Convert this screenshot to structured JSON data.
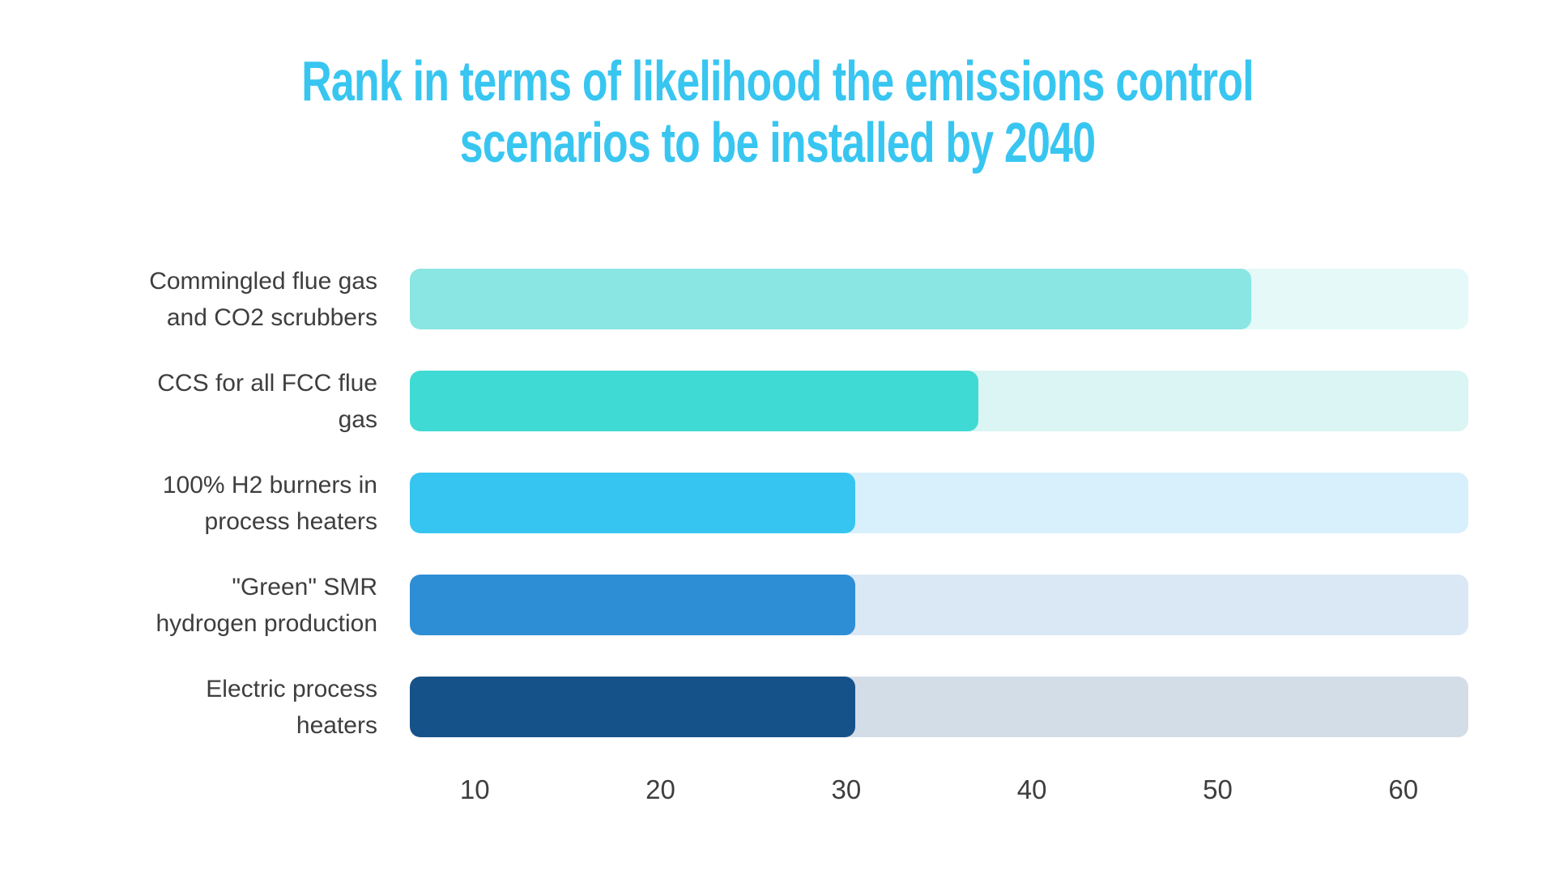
{
  "chart_data": {
    "type": "bar",
    "orientation": "horizontal",
    "title": "Rank in terms of likelihood the emissions control scenarios to be installed by 2040",
    "title_lines": [
      "Rank in terms of likelihood the emissions control",
      "scenarios to be installed by 2040"
    ],
    "title_color": "#38C6F1",
    "label_color": "#3E3E3E",
    "categories": [
      "Commingled flue gas and CO2 scrubbers",
      "CCS for all FCC flue gas",
      "100% H2 burners in process heaters",
      "\"Green\" SMR hydrogen production",
      "Electric process heaters"
    ],
    "category_lines": [
      [
        "Commingled flue gas",
        "and CO2 scrubbers"
      ],
      [
        "CCS for all FCC flue",
        "gas"
      ],
      [
        "100% H2 burners in",
        "process heaters"
      ],
      [
        "\"Green\" SMR",
        "hydrogen production"
      ],
      [
        "Electric process",
        "heaters"
      ]
    ],
    "values": [
      51.8,
      37.1,
      30.5,
      30.5,
      30.5
    ],
    "bar_colors": [
      "#8AE6E2",
      "#3FDAD3",
      "#36C4F0",
      "#2E8ED5",
      "#16528A"
    ],
    "track_colors": [
      "#E4F9F8",
      "#DAF5F3",
      "#D8F0FB",
      "#DAE8F5",
      "#D3DDE8"
    ],
    "axis": {
      "min": 6.5,
      "max": 63.5,
      "ticks": [
        10,
        20,
        30,
        40,
        50,
        60
      ]
    },
    "xlabel": "",
    "ylabel": "",
    "legend": "none",
    "grid": "off"
  }
}
